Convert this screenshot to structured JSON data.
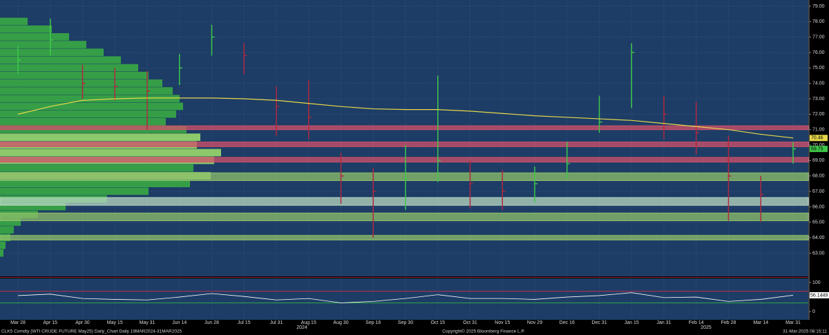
{
  "chart_data": [
    {
      "type": "ohlc",
      "categories": [
        "Mar 28",
        "Apr 15",
        "Apr 30",
        "May 15",
        "May 31",
        "Jun 14",
        "Jun 28",
        "Jul 15",
        "Jul 31",
        "Aug 15",
        "Aug 30",
        "Sep 16",
        "Sep 30",
        "Oct 15",
        "Oct 31",
        "Nov 15",
        "Nov 29",
        "Dec 16",
        "Dec 31",
        "Jan 15",
        "Jan 31",
        "Feb 14",
        "Feb 28",
        "Mar 14",
        "Mar 31"
      ],
      "years": [
        "2024",
        "2025"
      ],
      "high": [
        76.4,
        78.2,
        75.2,
        75.0,
        74.8,
        75.9,
        77.8,
        76.6,
        73.8,
        74.2,
        69.5,
        68.5,
        70.0,
        74.5,
        69.0,
        68.4,
        68.6,
        70.2,
        73.2,
        76.6,
        73.2,
        72.8,
        70.6,
        68.0,
        70.2
      ],
      "low": [
        74.6,
        75.8,
        73.0,
        72.9,
        71.0,
        73.9,
        75.8,
        74.6,
        70.6,
        70.4,
        66.2,
        64.0,
        65.8,
        67.6,
        65.9,
        65.8,
        66.3,
        67.8,
        70.8,
        72.4,
        70.4,
        69.4,
        65.1,
        65.0,
        68.8
      ],
      "close": [
        75.5,
        76.8,
        74.0,
        73.8,
        73.5,
        75.0,
        77.0,
        75.8,
        72.5,
        71.8,
        68.0,
        67.0,
        67.8,
        69.0,
        67.5,
        67.0,
        67.5,
        68.8,
        71.5,
        76.0,
        72.0,
        70.8,
        68.0,
        66.8,
        69.75
      ],
      "up_color": "#3fc84a",
      "down_color": "#b3283f",
      "series": [
        {
          "name": "SMA",
          "color": "#e8d84a",
          "values": [
            72.0,
            72.5,
            72.9,
            73.0,
            73.05,
            73.05,
            73.05,
            73.0,
            72.9,
            72.7,
            72.5,
            72.35,
            72.3,
            72.3,
            72.2,
            72.05,
            71.9,
            71.8,
            71.7,
            71.6,
            71.4,
            71.2,
            71.0,
            70.7,
            70.46
          ]
        }
      ],
      "zones": [
        {
          "low": 71.0,
          "high": 71.25,
          "color": "#d0506a"
        },
        {
          "low": 69.9,
          "high": 70.2,
          "color": "#d0506a"
        },
        {
          "low": 68.9,
          "high": 69.2,
          "color": "#d0506a"
        },
        {
          "low": 67.7,
          "high": 68.2,
          "color": "#8fbf6a"
        },
        {
          "low": 66.1,
          "high": 66.6,
          "color": "#b8d8c0"
        },
        {
          "low": 65.1,
          "high": 65.6,
          "color": "#8fbf6a"
        },
        {
          "low": 63.85,
          "high": 64.15,
          "color": "#8fbf6a"
        }
      ],
      "volume_profile": {
        "color": "#38a844",
        "light_color": "#9ad86c",
        "prices": [
          78.0,
          77.5,
          77.0,
          76.5,
          76.0,
          75.5,
          75.0,
          74.5,
          74.0,
          73.5,
          73.0,
          72.5,
          72.0,
          71.5,
          71.0,
          70.5,
          70.0,
          69.5,
          69.0,
          68.5,
          68.0,
          67.5,
          67.0,
          66.5,
          66.0,
          65.5,
          65.0,
          64.5,
          64.0,
          63.5,
          63.0
        ],
        "values": [
          40,
          75,
          100,
          125,
          150,
          175,
          200,
          215,
          235,
          250,
          260,
          265,
          255,
          240,
          270,
          290,
          285,
          320,
          310,
          280,
          305,
          275,
          215,
          155,
          95,
          55,
          30,
          20,
          15,
          8,
          5
        ]
      },
      "ylim": [
        61.5,
        79.4
      ],
      "yticks": [
        {
          "value": 63,
          "label": "63.00"
        },
        {
          "value": 64,
          "label": "64.00"
        },
        {
          "value": 65,
          "label": "65.00"
        },
        {
          "value": 66,
          "label": "66.00"
        },
        {
          "value": 67,
          "label": "67.00"
        },
        {
          "value": 68,
          "label": "68.00"
        },
        {
          "value": 69,
          "label": "69.00"
        },
        {
          "value": 70,
          "label": "70.00"
        },
        {
          "value": 71,
          "label": "71.00"
        },
        {
          "value": 72,
          "label": "72.00"
        },
        {
          "value": 73,
          "label": "73.00"
        },
        {
          "value": 74,
          "label": "74.00"
        },
        {
          "value": 75,
          "label": "75.00"
        },
        {
          "value": 76,
          "label": "76.00"
        },
        {
          "value": 77,
          "label": "77.00"
        },
        {
          "value": 78,
          "label": "78.00"
        },
        {
          "value": 79,
          "label": "79.00"
        }
      ],
      "grid": true
    },
    {
      "type": "line",
      "series": [
        {
          "name": "RSI",
          "color": "#ffffff",
          "values": [
            55,
            60,
            45,
            42,
            40,
            50,
            62,
            52,
            40,
            45,
            30,
            35,
            45,
            58,
            45,
            45,
            42,
            50,
            55,
            65,
            48,
            50,
            35,
            42,
            56.1449
          ]
        }
      ],
      "levels": [
        {
          "value": 70,
          "color": "#c0304a"
        },
        {
          "value": 30,
          "color": "#2fa84a"
        }
      ],
      "ylim": [
        -28,
        114
      ],
      "yticks": [
        0,
        50,
        100
      ],
      "grid": true
    }
  ],
  "footer": {
    "left": "CLK5 Comdty (WTI CRUDE FUTURE May25) Daily_Chart Daily 19MAR2024-31MAR2025",
    "center": "Copyright© 2025 Bloomberg Finance L.P.",
    "right": "31-Mar-2025 08:15:11"
  }
}
